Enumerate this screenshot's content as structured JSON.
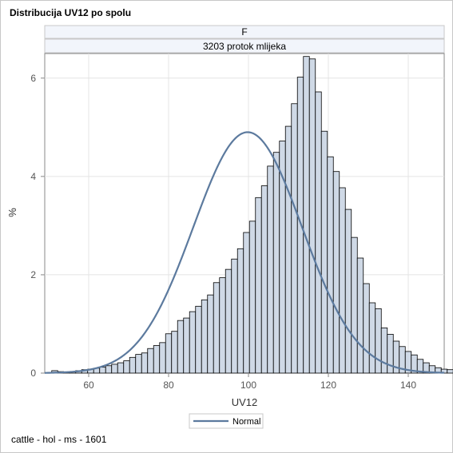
{
  "title": "Distribucija UV12 po spolu",
  "footnote": "cattle - hol - ms - 1601",
  "panel": {
    "row1": "F",
    "row2": "3203 protok mlijeka"
  },
  "chart_data": {
    "type": "histogram",
    "title": "Distribucija UV12 po spolu",
    "xlabel": "UV12",
    "ylabel": "%",
    "xlim": [
      49,
      149
    ],
    "ylim": [
      0,
      6.5
    ],
    "xticks": [
      60,
      80,
      100,
      120,
      140
    ],
    "yticks": [
      0,
      2,
      4,
      6
    ],
    "grid": true,
    "bin_width": 1.5,
    "bin_start": 50.75,
    "values": [
      0.05,
      0.03,
      0.01,
      0.03,
      0.05,
      0.07,
      0.08,
      0.1,
      0.12,
      0.15,
      0.18,
      0.21,
      0.25,
      0.32,
      0.38,
      0.41,
      0.5,
      0.56,
      0.62,
      0.8,
      0.85,
      1.07,
      1.12,
      1.25,
      1.36,
      1.49,
      1.59,
      1.84,
      1.94,
      2.11,
      2.32,
      2.53,
      2.86,
      3.09,
      3.57,
      3.81,
      4.21,
      4.49,
      4.72,
      5.02,
      5.48,
      6.02,
      6.44,
      6.39,
      5.72,
      4.92,
      4.4,
      4.1,
      3.77,
      3.33,
      2.76,
      2.34,
      1.82,
      1.43,
      1.31,
      0.92,
      0.79,
      0.65,
      0.54,
      0.44,
      0.37,
      0.28,
      0.21,
      0.15,
      0.11,
      0.08,
      0.07,
      0.05,
      0.04,
      0.03,
      0.03,
      0.02,
      0.01,
      0.01,
      0.01,
      0.01,
      0.01,
      0.02,
      0.03,
      0.04,
      0.05,
      0.06,
      0.06,
      0.12
    ],
    "normal_curve": {
      "name": "Normal",
      "mean": 99.8,
      "sd": 13.6,
      "scale": 4.9
    },
    "legend": {
      "entries": [
        "Normal"
      ],
      "placement": "bottom-center"
    },
    "colors": {
      "bar_fill": "#cfd9e6",
      "bar_stroke": "#000000",
      "curve": "#5c7a9e",
      "grid": "#e4e4e4",
      "panel_header": "#f2f5fb"
    }
  }
}
